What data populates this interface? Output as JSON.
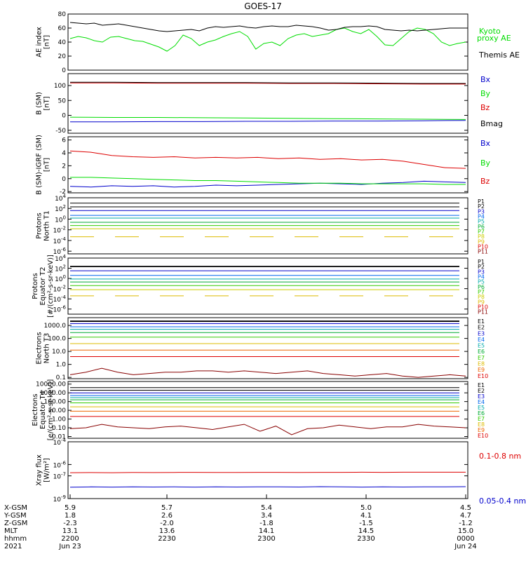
{
  "title": "GOES-17",
  "colors": {
    "black": "#000000",
    "green": "#00dd00",
    "red": "#dd0000",
    "blue": "#0000cc"
  },
  "chart_data": [
    {
      "type": "line",
      "panel": "ae",
      "ylabel": [
        "AE index",
        "[nT]"
      ],
      "ylim": [
        0,
        80
      ],
      "yticks": [
        "0",
        "20",
        "40",
        "60",
        "80"
      ],
      "series": [
        {
          "name": "Kyoto proxy AE",
          "color": "#00dd00",
          "values": [
            45,
            48,
            46,
            42,
            40,
            47,
            48,
            45,
            42,
            41,
            37,
            33,
            27,
            35,
            50,
            45,
            35,
            40,
            43,
            48,
            52,
            55,
            48,
            30,
            38,
            40,
            35,
            45,
            50,
            52,
            48,
            50,
            52,
            58,
            60,
            55,
            52,
            58,
            48,
            36,
            35,
            45,
            55,
            60,
            58,
            52,
            40,
            35,
            38,
            40
          ]
        },
        {
          "name": "Themis AE",
          "color": "#000000",
          "values": [
            68,
            67,
            66,
            67,
            64,
            65,
            66,
            64,
            62,
            60,
            58,
            56,
            55,
            56,
            57,
            58,
            56,
            60,
            62,
            61,
            62,
            63,
            61,
            60,
            62,
            63,
            62,
            62,
            64,
            63,
            62,
            60,
            57,
            58,
            61,
            62,
            62,
            63,
            62,
            58,
            57,
            56,
            57,
            56,
            57,
            58,
            59,
            60,
            60,
            60
          ]
        }
      ],
      "legend": [
        {
          "text": "Kyoto",
          "color": "#00dd00"
        },
        {
          "text": "proxy AE",
          "color": "#00dd00"
        },
        {
          "text": "Themis AE",
          "color": "#000000"
        }
      ]
    },
    {
      "type": "line",
      "panel": "bsm",
      "ylabel": [
        "B (SM)",
        "[nT]"
      ],
      "ylim": [
        -60,
        140
      ],
      "yticks": [
        "-50",
        "0",
        "50",
        "100"
      ],
      "series": [
        {
          "name": "Bx",
          "color": "#0000cc",
          "values": [
            -22,
            -22,
            -21,
            -21,
            -20,
            -20,
            -19,
            -19,
            -18,
            -17
          ]
        },
        {
          "name": "By",
          "color": "#00dd00",
          "values": [
            -6,
            -7,
            -7,
            -8,
            -9,
            -10,
            -11,
            -12,
            -13,
            -14
          ]
        },
        {
          "name": "Bz",
          "color": "#dd0000",
          "values": [
            109,
            109,
            108,
            108,
            108,
            107,
            107,
            106,
            105,
            105
          ]
        },
        {
          "name": "Bmag",
          "color": "#000000",
          "values": [
            111,
            111,
            110,
            110,
            110,
            109,
            109,
            108,
            107,
            107
          ]
        }
      ],
      "legend": [
        {
          "text": "Bx",
          "color": "#0000cc"
        },
        {
          "text": "By",
          "color": "#00dd00"
        },
        {
          "text": "Bz",
          "color": "#dd0000"
        },
        {
          "text": "Bmag",
          "color": "#000000"
        }
      ]
    },
    {
      "type": "line",
      "panel": "bigrf",
      "ylabel": [
        "B (SM)-IGRF (SM)",
        "[nT]"
      ],
      "ylim": [
        -2.2,
        6.5
      ],
      "yticks": [
        "-2",
        "0",
        "2",
        "4",
        "6"
      ],
      "series": [
        {
          "name": "Bx",
          "color": "#0000cc",
          "values": [
            -1.2,
            -1.3,
            -1.1,
            -1.2,
            -1.1,
            -1.3,
            -1.2,
            -1.0,
            -1.1,
            -1.0,
            -0.9,
            -0.8,
            -0.7,
            -0.8,
            -0.9,
            -0.7,
            -0.6,
            -0.4,
            -0.5,
            -0.6
          ]
        },
        {
          "name": "By",
          "color": "#00dd00",
          "values": [
            0.2,
            0.2,
            0.1,
            0.0,
            -0.1,
            -0.2,
            -0.3,
            -0.3,
            -0.4,
            -0.5,
            -0.6,
            -0.7,
            -0.7,
            -0.7,
            -0.8,
            -0.8,
            -0.8,
            -0.8,
            -0.9,
            -0.9
          ]
        },
        {
          "name": "Bz",
          "color": "#dd0000",
          "values": [
            4.3,
            4.1,
            3.6,
            3.4,
            3.3,
            3.4,
            3.2,
            3.3,
            3.2,
            3.3,
            3.1,
            3.2,
            3.0,
            3.1,
            2.9,
            3.0,
            2.7,
            2.2,
            1.7,
            1.6
          ]
        }
      ],
      "legend": [
        {
          "text": "Bx",
          "color": "#0000cc"
        },
        {
          "text": "By",
          "color": "#00dd00"
        },
        {
          "text": "Bz",
          "color": "#dd0000"
        }
      ]
    },
    {
      "type": "line",
      "panel": "p_north",
      "log": true,
      "ylabel": [
        "Protons",
        "North T1"
      ],
      "ylim": [
        -6.5,
        4
      ],
      "yticks": [
        {
          "b": "10",
          "e": "4"
        },
        {
          "b": "10",
          "e": "2"
        },
        {
          "b": "10",
          "e": "0"
        },
        {
          "b": "10",
          "e": "-2"
        },
        {
          "b": "10",
          "e": "-4"
        },
        {
          "b": "10",
          "e": "-6"
        }
      ],
      "channels": [
        {
          "name": "P1",
          "color": "#000000",
          "logv": 3.0
        },
        {
          "name": "P2",
          "color": "#000000",
          "logv": 2.3
        },
        {
          "name": "P3",
          "color": "#0000cc",
          "logv": 1.6
        },
        {
          "name": "P4",
          "color": "#0066ee",
          "logv": 0.7
        },
        {
          "name": "P5",
          "color": "#00aaaa",
          "logv": 0.2
        },
        {
          "name": "P6",
          "color": "#00aa33",
          "logv": -0.6
        },
        {
          "name": "P7",
          "color": "#33cc00",
          "logv": -1.2
        },
        {
          "name": "P8",
          "color": "#cccc00",
          "logv": -1.8
        },
        {
          "name": "P9",
          "color": "#ddbb00",
          "logv": -3.3
        },
        {
          "name": "P10",
          "color": "#dd0000",
          "logv": -8
        },
        {
          "name": "P11",
          "color": "#880000",
          "logv": -8
        }
      ]
    },
    {
      "type": "line",
      "panel": "p_equator",
      "log": true,
      "ylabel": [
        "Protons",
        "Equator T2",
        "[#/(cm²-s-sr-keV)]"
      ],
      "ylim": [
        -7,
        4
      ],
      "yticks": [
        {
          "b": "10",
          "e": "4"
        },
        {
          "b": "10",
          "e": "2"
        },
        {
          "b": "10",
          "e": "0"
        },
        {
          "b": "10",
          "e": "-2"
        },
        {
          "b": "10",
          "e": "-4"
        },
        {
          "b": "10",
          "e": "-6"
        }
      ],
      "channels": [
        {
          "name": "P1",
          "color": "#000000",
          "logv": 2.4
        },
        {
          "name": "P2",
          "color": "#000000",
          "logv": 2.3
        },
        {
          "name": "P3",
          "color": "#0000cc",
          "logv": 1.5
        },
        {
          "name": "P4",
          "color": "#0066ee",
          "logv": 0.6
        },
        {
          "name": "P5",
          "color": "#00aaaa",
          "logv": -0.1
        },
        {
          "name": "P6",
          "color": "#00aa33",
          "logv": -0.7
        },
        {
          "name": "P7",
          "color": "#33cc00",
          "logv": -1.4
        },
        {
          "name": "P8",
          "color": "#cccc00",
          "logv": -2.2
        },
        {
          "name": "P9",
          "color": "#ddbb00",
          "logv": -3.4
        },
        {
          "name": "P10",
          "color": "#dd0000",
          "logv": -8
        },
        {
          "name": "P11",
          "color": "#880000",
          "logv": -8
        }
      ]
    },
    {
      "type": "line",
      "panel": "e_north",
      "log": true,
      "ylabel": [
        "Electrons",
        "North T3"
      ],
      "ylim": [
        -1.1,
        3.6
      ],
      "yticks": [
        "1000.0",
        "100.0",
        "10.0",
        "1.0",
        "0.1"
      ],
      "channels": [
        {
          "name": "E1",
          "color": "#000000",
          "logv": 3.35
        },
        {
          "name": "E2",
          "color": "#000000",
          "logv": 3.3
        },
        {
          "name": "E3",
          "color": "#0000cc",
          "logv": 3.15
        },
        {
          "name": "E4",
          "color": "#0066ee",
          "logv": 2.9
        },
        {
          "name": "E5",
          "color": "#00aaaa",
          "logv": 2.7
        },
        {
          "name": "E6",
          "color": "#00aa33",
          "logv": 2.45
        },
        {
          "name": "E7",
          "color": "#33cc00",
          "logv": 2.1
        },
        {
          "name": "E8",
          "color": "#ddbb00",
          "logv": 1.6
        },
        {
          "name": "E9",
          "color": "#ee6600",
          "logv": 1.1
        },
        {
          "name": "E10",
          "color": "#dd0000",
          "logv": 0.6
        }
      ],
      "lowest": {
        "color": "#880000",
        "values": [
          -0.8,
          -0.6,
          -0.3,
          -0.6,
          -0.8,
          -0.7,
          -0.6,
          -0.6,
          -0.5,
          -0.5,
          -0.6,
          -0.5,
          -0.6,
          -0.7,
          -0.6,
          -0.5,
          -0.7,
          -0.8,
          -0.9,
          -0.8,
          -0.7,
          -0.9,
          -1.0,
          -0.9,
          -0.8,
          -0.9
        ]
      }
    },
    {
      "type": "line",
      "panel": "e_equator",
      "log": true,
      "ylabel": [
        "Electrons",
        "Equator T4",
        "[e/(cm²-s-sr-keV)]"
      ],
      "ylim": [
        -2.2,
        4.3
      ],
      "yticks": [
        "10000.00",
        "1000.00",
        "100.00",
        "10.00",
        "1.00",
        "0.10",
        "0.01"
      ],
      "channels": [
        {
          "name": "E1",
          "color": "#000000",
          "logv": 3.6
        },
        {
          "name": "E2",
          "color": "#000000",
          "logv": 3.3
        },
        {
          "name": "E3",
          "color": "#0000cc",
          "logv": 3.0
        },
        {
          "name": "E4",
          "color": "#0066ee",
          "logv": 2.7
        },
        {
          "name": "E5",
          "color": "#00aaaa",
          "logv": 2.45
        },
        {
          "name": "E6",
          "color": "#00aa33",
          "logv": 2.2
        },
        {
          "name": "E7",
          "color": "#33cc00",
          "logv": 1.85
        },
        {
          "name": "E8",
          "color": "#ddbb00",
          "logv": 1.4
        },
        {
          "name": "E9",
          "color": "#ee6600",
          "logv": 0.9
        },
        {
          "name": "E10",
          "color": "#dd0000",
          "logv": 0.3
        }
      ],
      "lowest": {
        "color": "#880000",
        "values": [
          -1.1,
          -1.0,
          -0.6,
          -0.9,
          -1.0,
          -1.1,
          -0.9,
          -0.8,
          -1.0,
          -1.2,
          -0.9,
          -0.6,
          -1.4,
          -0.8,
          -1.8,
          -1.1,
          -1.0,
          -0.7,
          -0.9,
          -1.1,
          -0.9,
          -0.9,
          -0.6,
          -0.8,
          -0.9,
          -1.0
        ]
      }
    },
    {
      "type": "line",
      "panel": "xray",
      "log": true,
      "ylabel": [
        "Xray flux",
        "[W/m²]"
      ],
      "ylim": [
        -9,
        -4
      ],
      "yticks": [
        {
          "b": "10",
          "e": "-4"
        },
        {
          "b": "10",
          "e": "-7"
        },
        {
          "b": "10",
          "e": "-6"
        },
        {
          "b": "10",
          "e": "-9"
        }
      ],
      "series": [
        {
          "name": "0.1-0.8 nm",
          "color": "#dd0000",
          "values": [
            -6.72,
            -6.71,
            -6.72,
            -6.7,
            -6.71,
            -6.7,
            -6.69,
            -6.7,
            -6.7,
            -6.69,
            -6.69,
            -6.7,
            -6.69,
            -6.69,
            -6.68,
            -6.69,
            -6.68,
            -6.68,
            -6.68,
            -6.68
          ]
        },
        {
          "name": "0.05-0.4 nm",
          "color": "#0000cc",
          "values": [
            -8.0,
            -7.97,
            -7.99,
            -7.96,
            -7.98,
            -7.97,
            -7.99,
            -7.96,
            -7.98,
            -7.97,
            -7.96,
            -7.98,
            -7.95,
            -7.97,
            -7.99,
            -7.96,
            -7.98,
            -7.97,
            -7.96,
            -7.95
          ]
        }
      ],
      "legend": [
        {
          "text": "0.1-0.8 nm",
          "color": "#dd0000"
        },
        {
          "text": "0.05-0.4 nm",
          "color": "#0000cc"
        }
      ]
    }
  ],
  "xaxis": {
    "row_labels": [
      "X-GSM",
      "Y-GSM",
      "Z-GSM",
      "MLT",
      "hhmm",
      "2021"
    ],
    "columns": [
      [
        "5.9",
        "1.8",
        "-2.3",
        "13.1",
        "2200",
        "Jun 23"
      ],
      [
        "5.7",
        "2.6",
        "-2.0",
        "13.6",
        "2230",
        ""
      ],
      [
        "5.4",
        "3.4",
        "-1.8",
        "14.1",
        "2300",
        ""
      ],
      [
        "5.0",
        "4.1",
        "-1.5",
        "14.5",
        "2330",
        ""
      ],
      [
        "4.5",
        "4.7",
        "-1.2",
        "15.0",
        "0000",
        "Jun 24"
      ]
    ]
  }
}
